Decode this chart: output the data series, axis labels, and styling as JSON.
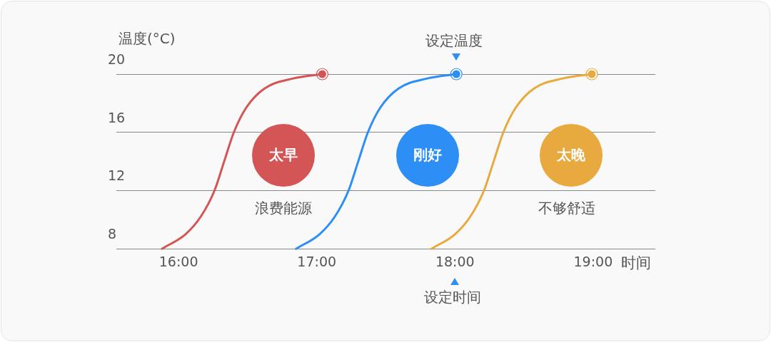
{
  "chart_data": {
    "type": "line",
    "ylabel": "温度(°C)",
    "xlabel": "时间",
    "xlim": [
      15.55,
      19.45
    ],
    "xticks": [
      {
        "value": 16,
        "label": "16:00"
      },
      {
        "value": 17,
        "label": "17:00"
      },
      {
        "value": 18,
        "label": "18:00"
      },
      {
        "value": 19,
        "label": "19:00"
      }
    ],
    "ylim": [
      8,
      20
    ],
    "yticks": [
      8,
      12,
      16,
      20
    ],
    "grid": "y",
    "legend": false,
    "marker": "circle",
    "line_style": "solid",
    "series": [
      {
        "color": "#d45555",
        "marker": "none",
        "x": [
          15.88,
          16.05,
          16.16,
          16.26,
          16.33,
          16.4,
          16.49,
          16.62,
          16.83,
          17.04
        ],
        "values": [
          8,
          9,
          10.2,
          12,
          14,
          16,
          17.7,
          19,
          19.7,
          20
        ]
      },
      {
        "color": "#2d8ff5",
        "marker": "none",
        "x": [
          16.85,
          17.02,
          17.13,
          17.23,
          17.3,
          17.37,
          17.46,
          17.59,
          17.8,
          18.01
        ],
        "values": [
          8,
          9,
          10.2,
          12,
          14,
          16,
          17.7,
          19,
          19.7,
          20
        ]
      },
      {
        "color": "#e8a93f",
        "marker": "none",
        "x": [
          17.83,
          18,
          18.11,
          18.21,
          18.28,
          18.35,
          18.44,
          18.57,
          18.78,
          18.99
        ],
        "values": [
          8,
          9,
          10.2,
          12,
          14,
          16,
          17.7,
          19,
          19.7,
          20
        ]
      },
      {
        "type": "scatter",
        "color": "#d45555",
        "x": [
          17.04
        ],
        "values": [
          20
        ]
      },
      {
        "type": "scatter",
        "color": "#2d8ff5",
        "x": [
          18.01
        ],
        "values": [
          20
        ]
      },
      {
        "type": "scatter",
        "color": "#e8a93f",
        "x": [
          18.99
        ],
        "values": [
          20
        ]
      }
    ],
    "annotations": [
      "太早",
      "刚好",
      "太晚",
      "浪费能源",
      "不够舒适",
      {
        "text": "设定温度",
        "x": 18.01,
        "y": 20
      },
      "设定时间"
    ]
  }
}
